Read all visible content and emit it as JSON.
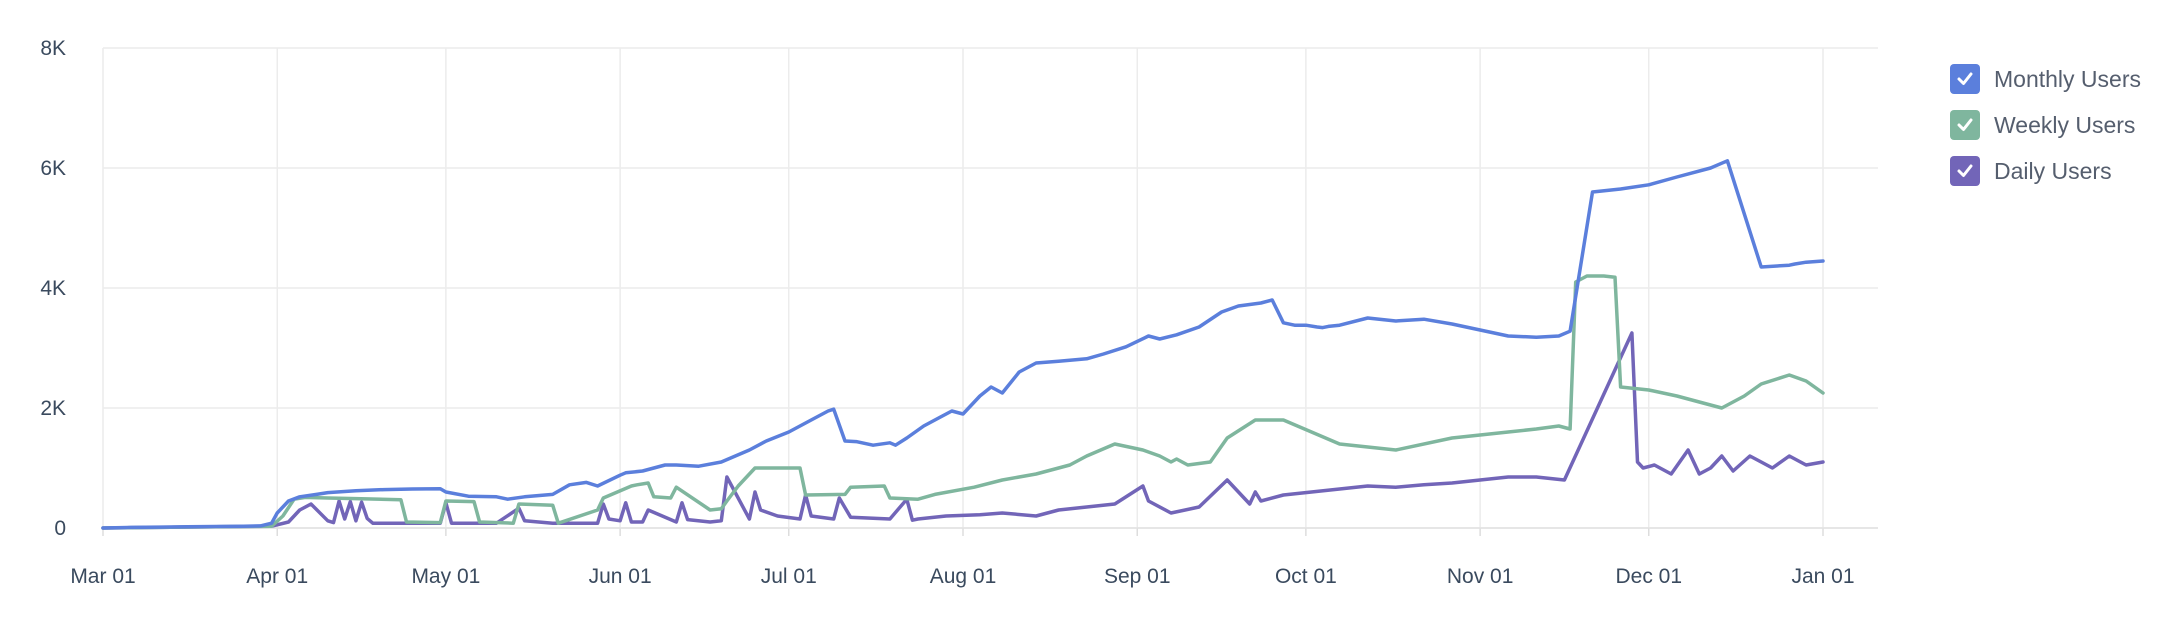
{
  "chart_data": {
    "type": "line",
    "xlabel": "",
    "ylabel": "",
    "x_ticks": [
      "Mar 01",
      "Apr 01",
      "May 01",
      "Jun 01",
      "Jul 01",
      "Aug 01",
      "Sep 01",
      "Oct 01",
      "Nov 01",
      "Dec 01",
      "Jan 01"
    ],
    "y_ticks": [
      "0",
      "2K",
      "4K",
      "6K",
      "8K"
    ],
    "ylim": [
      0,
      8000
    ],
    "xlim_days": [
      0,
      306
    ],
    "grid": true,
    "legend_position": "top-right",
    "series": [
      {
        "name": "Monthly Users",
        "color": "#5b7fdc",
        "checked": true,
        "x": [
          0,
          5,
          10,
          15,
          20,
          25,
          28,
          30,
          31,
          33,
          35,
          38,
          40,
          45,
          50,
          55,
          60,
          61,
          65,
          70,
          72,
          75,
          80,
          83,
          86,
          88,
          92,
          93,
          96,
          100,
          102,
          106,
          110,
          115,
          118,
          122,
          126,
          129,
          130,
          132,
          134,
          137,
          140,
          141,
          143,
          146,
          149,
          151,
          153,
          156,
          158,
          160,
          163,
          166,
          170,
          175,
          178,
          182,
          186,
          188,
          191,
          195,
          199,
          202,
          206,
          208,
          210,
          212,
          214,
          216,
          217,
          218,
          220,
          225,
          230,
          235,
          240,
          245,
          250,
          255,
          259,
          261,
          265,
          270,
          275,
          280,
          286,
          288,
          289,
          295,
          300,
          301,
          303,
          306
        ],
        "y": [
          0,
          10,
          15,
          20,
          25,
          30,
          35,
          80,
          250,
          450,
          520,
          560,
          590,
          620,
          640,
          650,
          655,
          600,
          530,
          520,
          480,
          520,
          560,
          720,
          760,
          700,
          880,
          920,
          950,
          1050,
          1050,
          1030,
          1100,
          1300,
          1450,
          1600,
          1800,
          1950,
          1980,
          1450,
          1440,
          1380,
          1420,
          1380,
          1500,
          1700,
          1850,
          1950,
          1900,
          2200,
          2350,
          2250,
          2600,
          2750,
          2780,
          2820,
          2900,
          3020,
          3200,
          3150,
          3220,
          3350,
          3600,
          3700,
          3750,
          3800,
          3420,
          3380,
          3380,
          3350,
          3340,
          3360,
          3380,
          3500,
          3450,
          3480,
          3400,
          3300,
          3200,
          3180,
          3200,
          3280,
          5600,
          5650,
          5720,
          5850,
          6000,
          6080,
          6120,
          4350,
          4380,
          4400,
          4430,
          4450
        ],
        "values_note": ""
      },
      {
        "name": "Weekly Users",
        "color": "#7fb69e",
        "checked": true,
        "x": [
          0,
          10,
          20,
          30,
          32,
          34,
          36,
          40,
          45,
          53,
          54,
          60,
          61,
          66,
          67,
          73,
          74,
          80,
          81,
          88,
          89,
          94,
          95,
          97,
          98,
          101,
          102,
          108,
          110,
          111,
          113,
          115,
          116,
          124,
          125,
          132,
          133,
          139,
          140,
          145,
          148,
          155,
          160,
          166,
          170,
          172,
          175,
          180,
          185,
          188,
          190,
          191,
          193,
          197,
          200,
          205,
          210,
          220,
          230,
          240,
          250,
          255,
          259,
          261,
          262,
          264,
          267,
          269,
          270,
          275,
          280,
          284,
          288,
          292,
          295,
          300,
          303,
          306
        ],
        "y": [
          0,
          10,
          20,
          30,
          200,
          480,
          510,
          500,
          490,
          470,
          100,
          90,
          450,
          440,
          100,
          80,
          400,
          380,
          80,
          300,
          500,
          700,
          720,
          750,
          520,
          500,
          680,
          300,
          320,
          450,
          700,
          900,
          1000,
          1000,
          550,
          560,
          680,
          700,
          500,
          480,
          560,
          680,
          800,
          900,
          1000,
          1050,
          1200,
          1400,
          1300,
          1200,
          1100,
          1150,
          1050,
          1100,
          1500,
          1800,
          1800,
          1400,
          1300,
          1500,
          1600,
          1650,
          1700,
          1650,
          4100,
          4200,
          4200,
          4180,
          2350,
          2300,
          2200,
          2100,
          2000,
          2200,
          2400,
          2550,
          2450,
          2250
        ],
        "values_note": ""
      },
      {
        "name": "Daily Users",
        "color": "#7265b8",
        "checked": true,
        "x": [
          0,
          10,
          20,
          30,
          33,
          35,
          37,
          40,
          41,
          42,
          43,
          44,
          45,
          46,
          47,
          48,
          60,
          61,
          62,
          70,
          74,
          75,
          80,
          88,
          89,
          90,
          92,
          93,
          94,
          96,
          97,
          102,
          103,
          104,
          108,
          110,
          111,
          115,
          116,
          117,
          120,
          124,
          125,
          126,
          130,
          131,
          133,
          140,
          143,
          144,
          145,
          150,
          156,
          160,
          166,
          170,
          175,
          180,
          185,
          186,
          190,
          195,
          200,
          204,
          205,
          206,
          210,
          215,
          220,
          225,
          230,
          235,
          240,
          245,
          250,
          255,
          260,
          272,
          273,
          274,
          276,
          279,
          282,
          284,
          286,
          288,
          290,
          293,
          295,
          297,
          300,
          303,
          306
        ],
        "y": [
          0,
          10,
          20,
          30,
          100,
          300,
          400,
          120,
          90,
          450,
          150,
          440,
          120,
          430,
          160,
          80,
          80,
          420,
          80,
          80,
          330,
          120,
          80,
          80,
          400,
          150,
          120,
          420,
          100,
          100,
          300,
          100,
          420,
          140,
          100,
          120,
          850,
          150,
          600,
          300,
          200,
          150,
          550,
          200,
          150,
          500,
          180,
          150,
          480,
          130,
          150,
          200,
          220,
          250,
          200,
          300,
          350,
          400,
          700,
          450,
          250,
          350,
          800,
          400,
          600,
          450,
          550,
          600,
          650,
          700,
          680,
          720,
          750,
          800,
          850,
          850,
          800,
          3250,
          1100,
          1000,
          1050,
          900,
          1300,
          900,
          1000,
          1200,
          950,
          1200,
          1100,
          1000,
          1200,
          1050,
          1100
        ],
        "values_note": ""
      }
    ]
  },
  "legend": {
    "items": [
      {
        "label": "Monthly Users",
        "color": "#5b7fdc",
        "checked": true
      },
      {
        "label": "Weekly Users",
        "color": "#7fb69e",
        "checked": true
      },
      {
        "label": "Daily Users",
        "color": "#7265b8",
        "checked": true
      }
    ]
  }
}
